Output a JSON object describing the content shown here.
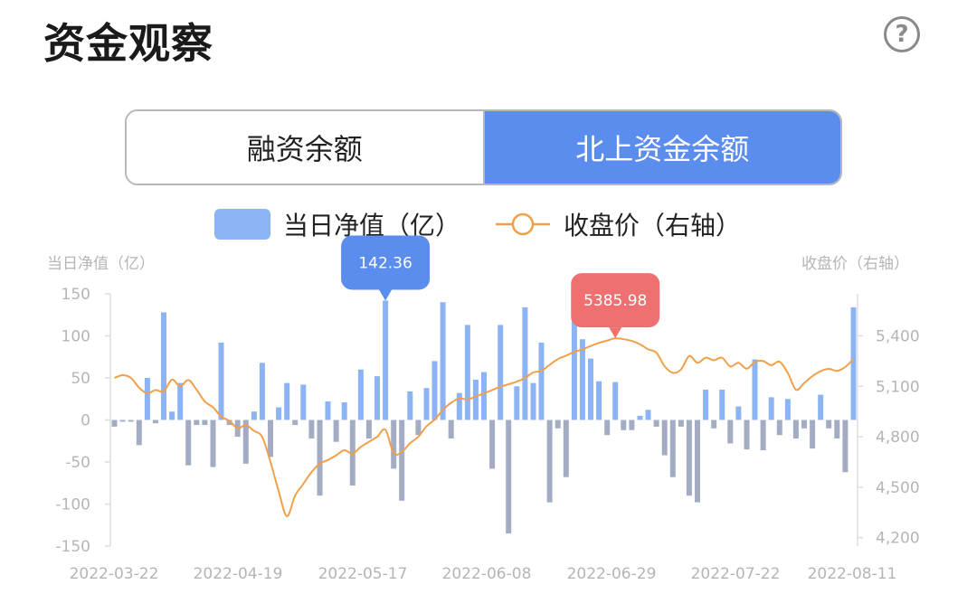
{
  "title": "资金观察",
  "help_icon": "question-circle-icon",
  "tabs": [
    {
      "label": "融资余额",
      "active": false
    },
    {
      "label": "北上资金余额",
      "active": true
    }
  ],
  "colors": {
    "accent": "#5b8def",
    "bar_positive": "#8cb4f5",
    "bar_negative": "#a3acc2",
    "line": "#f0a04b",
    "tooltip_left": "#5b8def",
    "tooltip_right": "#ee7070"
  },
  "chart_data": {
    "type": "bar",
    "legend": {
      "bar": "当日净值（亿）",
      "line": "收盘价（右轴）",
      "placement": "top-center"
    },
    "ylabel_left": "当日净值（亿）",
    "ylabel_right": "收盘价（右轴）",
    "ylim_left": [
      -150,
      150
    ],
    "yticks_left": [
      "150",
      "100",
      "50",
      "0",
      "-50",
      "-100",
      "-150"
    ],
    "ylim_right": [
      4150,
      5650
    ],
    "yticks_right": [
      "5,400",
      "5,100",
      "4,800",
      "4,500",
      "4,200"
    ],
    "xtick_labels": [
      "2022-03-22",
      "2022-04-19",
      "2022-05-17",
      "2022-06-08",
      "2022-06-29",
      "2022-07-22",
      "2022-08-11"
    ],
    "series": [
      {
        "type": "bar",
        "values": [
          -8,
          -2,
          -2,
          -30,
          50,
          -4,
          128,
          10,
          44,
          -54,
          -6,
          -6,
          -56,
          92,
          -6,
          -20,
          -52,
          10,
          68,
          -44,
          15,
          44,
          -6,
          42,
          -22,
          -90,
          22,
          -26,
          21,
          -78,
          60,
          -22,
          52,
          142,
          -58,
          -96,
          34,
          -18,
          38,
          70,
          140,
          -22,
          32,
          113,
          48,
          57,
          -58,
          113,
          -135,
          40,
          134,
          44,
          92,
          -98,
          -10,
          -68,
          120,
          96,
          73,
          46,
          -18,
          45,
          -12,
          -12,
          5,
          12,
          -8,
          -42,
          -68,
          -8,
          -90,
          -98,
          36,
          -10,
          36,
          -28,
          16,
          -35,
          72,
          -36,
          27,
          -18,
          25,
          -22,
          -10,
          -34,
          30,
          -10,
          -22,
          -62,
          134
        ]
      },
      {
        "type": "line",
        "values": [
          5150,
          5166,
          5150,
          5092,
          5058,
          5078,
          5070,
          5140,
          5100,
          5137,
          5080,
          5010,
          4975,
          4920,
          4895,
          4850,
          4870,
          4835,
          4799,
          4650,
          4475,
          4328,
          4450,
          4520,
          4590,
          4640,
          4662,
          4690,
          4720,
          4700,
          4740,
          4770,
          4800,
          4842,
          4702,
          4710,
          4762,
          4800,
          4862,
          4902,
          4960,
          5002,
          5028,
          5022,
          5040,
          5058,
          5078,
          5098,
          5112,
          5128,
          5150,
          5182,
          5192,
          5228,
          5262,
          5282,
          5305,
          5320,
          5340,
          5358,
          5372,
          5386,
          5380,
          5370,
          5350,
          5320,
          5300,
          5220,
          5180,
          5200,
          5280,
          5240,
          5270,
          5255,
          5270,
          5218,
          5240,
          5205,
          5245,
          5250,
          5226,
          5246,
          5180,
          5080,
          5120,
          5160,
          5190,
          5204,
          5192,
          5215,
          5262
        ]
      }
    ],
    "annotations": [
      {
        "label": "142.36",
        "series": "bar",
        "index": 33
      },
      {
        "label": "5385.98",
        "series": "line",
        "index": 61
      }
    ]
  }
}
